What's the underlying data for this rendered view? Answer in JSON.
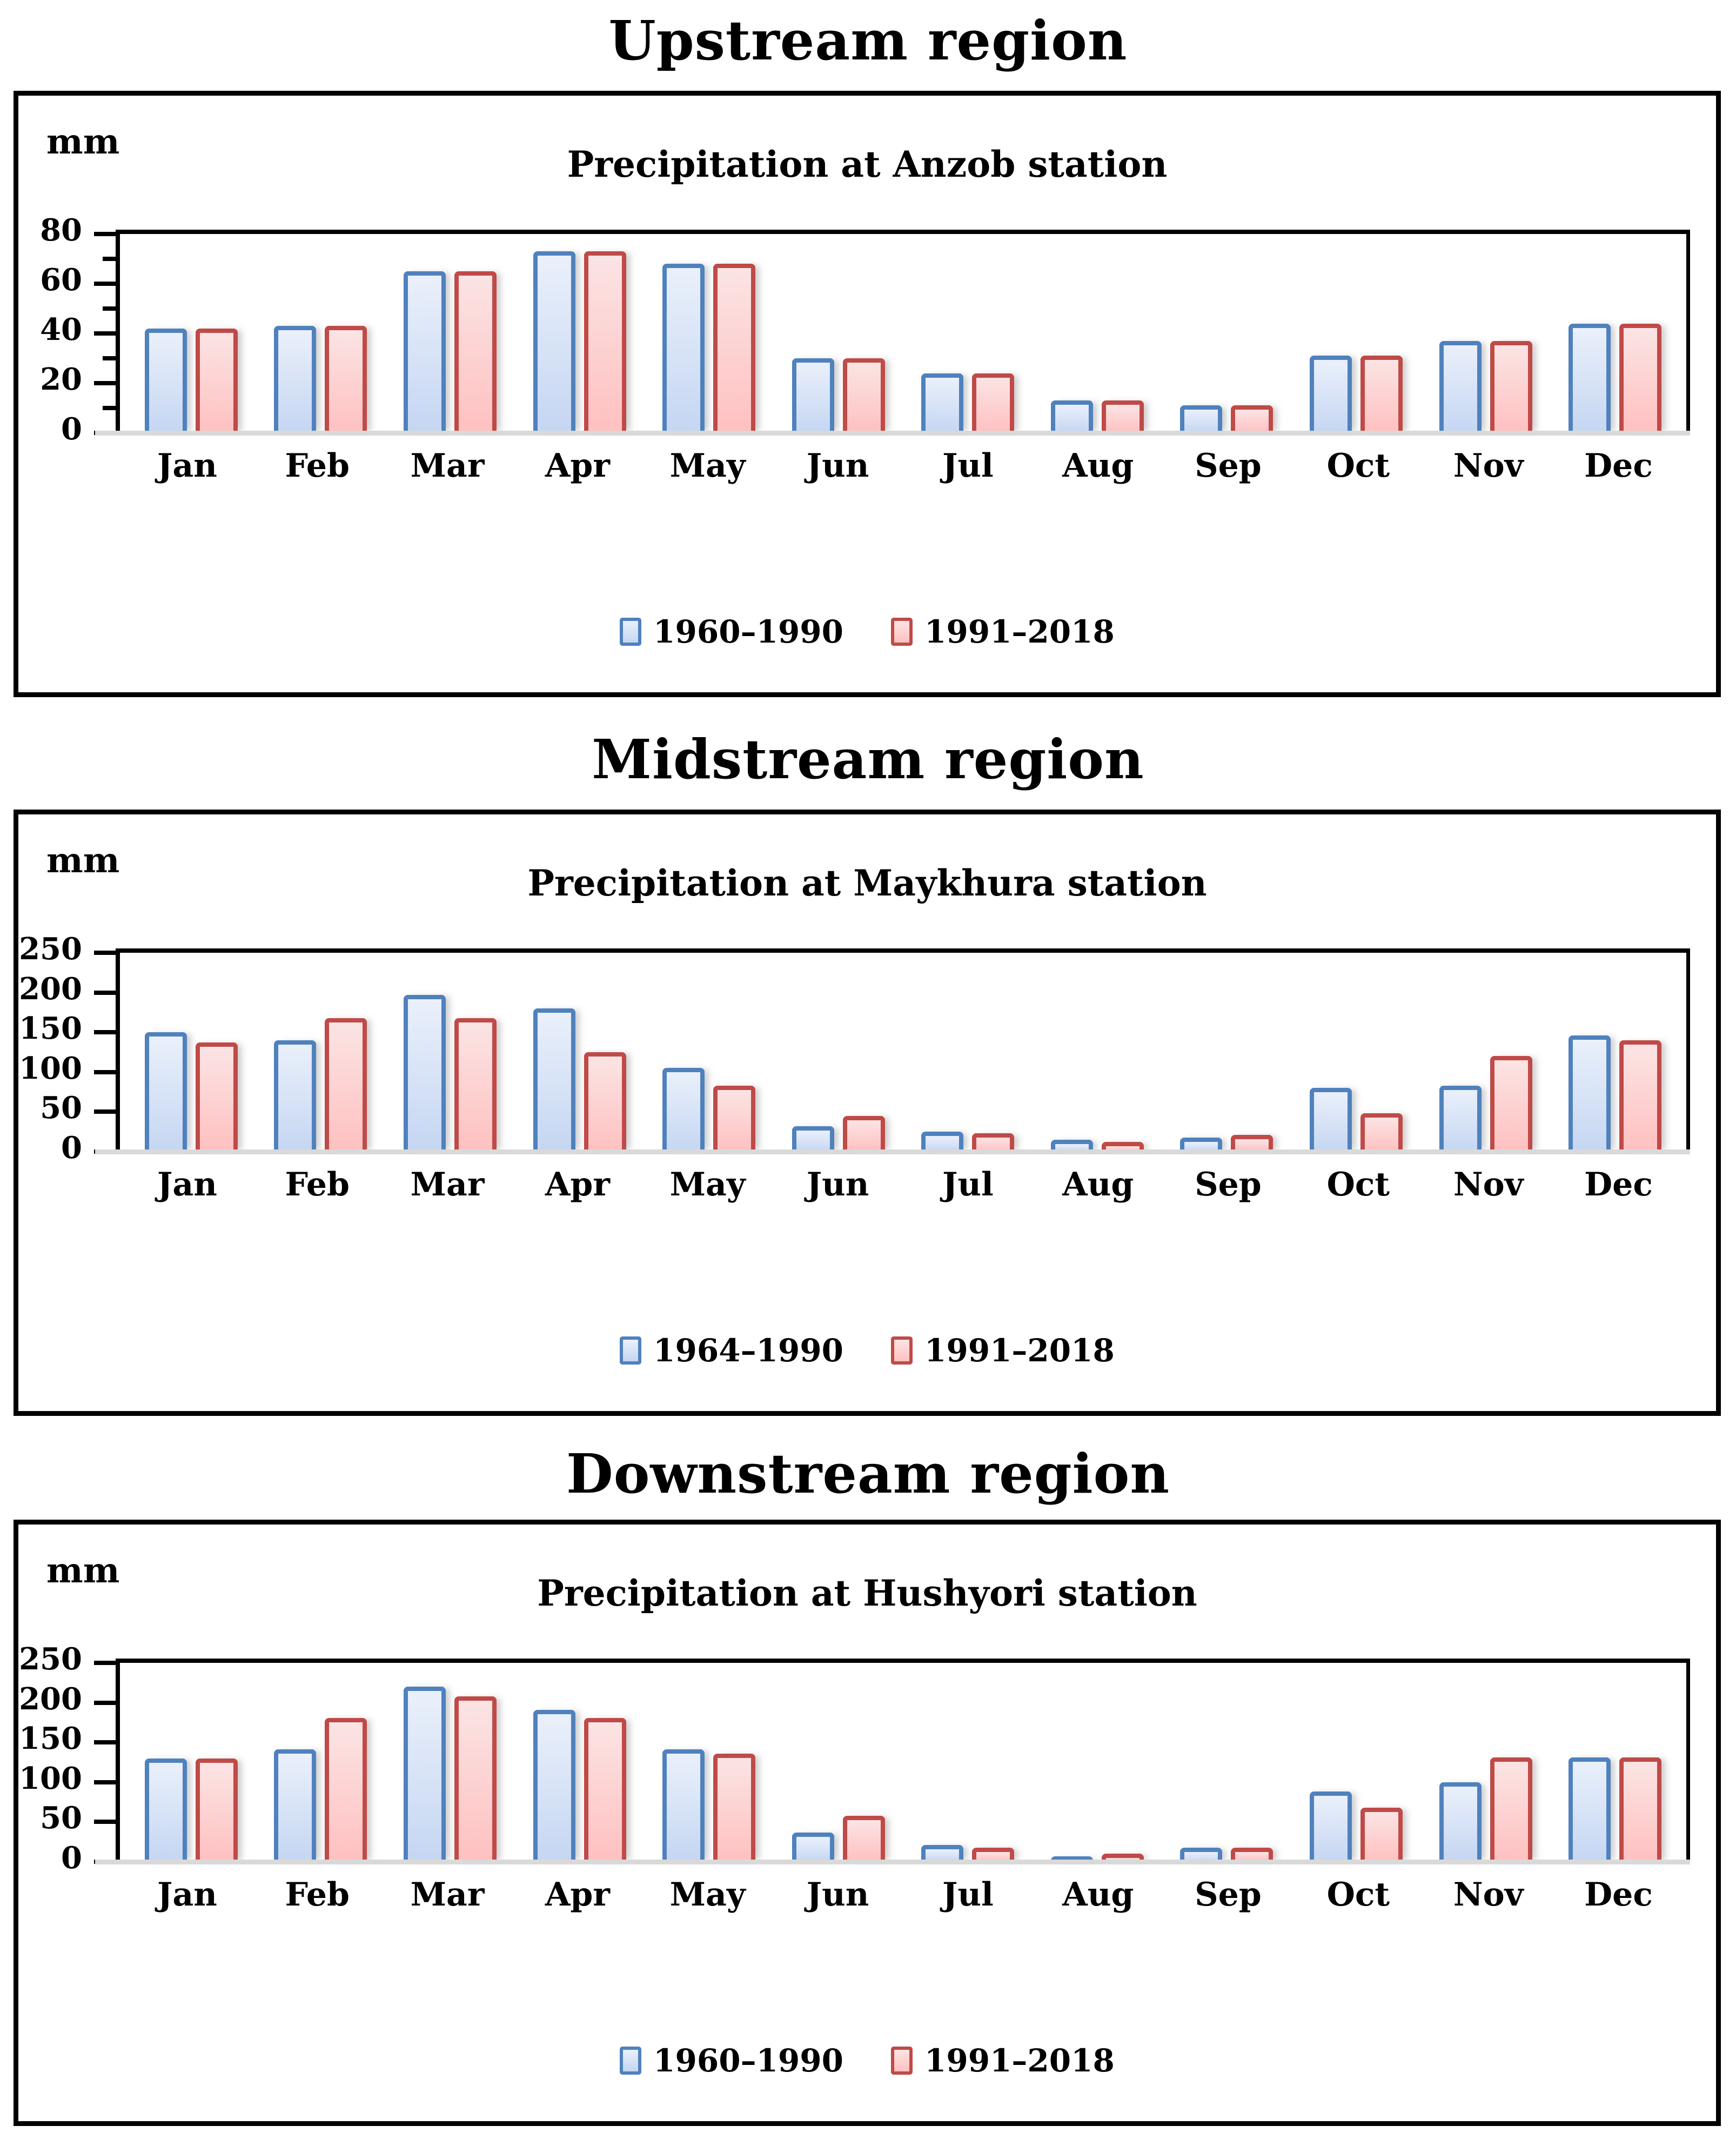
{
  "page_background": "#ffffff",
  "colors": {
    "series1_border": "#4f81bd",
    "series1_fill_top": "#eaf0fb",
    "series1_fill_bottom": "#c5d6f2",
    "series2_border": "#bf4a47",
    "series2_fill_top": "#fbe4e4",
    "series2_fill_bottom": "#ffc0c0",
    "axis": "#000000",
    "baseline": "#d9d9d9",
    "text": "#000000"
  },
  "chart_data": [
    {
      "type": "bar",
      "region_title": "Upstream region",
      "title": "Precipitation at Anzob station",
      "unit_label": "mm",
      "categories": [
        "Jan",
        "Feb",
        "Mar",
        "Apr",
        "May",
        "Jun",
        "Jul",
        "Aug",
        "Sep",
        "Oct",
        "Nov",
        "Dec"
      ],
      "series": [
        {
          "name": "1960–1990",
          "values": [
            42,
            43,
            65,
            73,
            68,
            30,
            24,
            13,
            11,
            31,
            37,
            44
          ]
        },
        {
          "name": "1991–2018",
          "values": [
            42,
            43,
            65,
            73,
            68,
            30,
            24,
            13,
            11,
            31,
            37,
            44
          ]
        }
      ],
      "ylim": [
        0,
        80
      ],
      "yticks": [
        80,
        60,
        40,
        20,
        0
      ],
      "yticks_minor": [
        70,
        50,
        30,
        10
      ],
      "xlabel": "",
      "ylabel": "mm",
      "grid": false,
      "legend_position": "bottom"
    },
    {
      "type": "bar",
      "region_title": "Midstream region",
      "title": "Precipitation at Maykhura station",
      "unit_label": "mm",
      "categories": [
        "Jan",
        "Feb",
        "Mar",
        "Apr",
        "May",
        "Jun",
        "Jul",
        "Aug",
        "Sep",
        "Oct",
        "Nov",
        "Dec"
      ],
      "series": [
        {
          "name": "1964–1990",
          "values": [
            150,
            140,
            197,
            180,
            105,
            32,
            25,
            15,
            18,
            80,
            83,
            146
          ]
        },
        {
          "name": "1991–2018",
          "values": [
            137,
            168,
            168,
            125,
            83,
            45,
            23,
            12,
            21,
            48,
            120,
            140
          ]
        }
      ],
      "ylim": [
        0,
        250
      ],
      "yticks": [
        250,
        200,
        150,
        100,
        50,
        0
      ],
      "yticks_minor": [],
      "xlabel": "",
      "ylabel": "mm",
      "grid": false,
      "legend_position": "bottom"
    },
    {
      "type": "bar",
      "region_title": "Downstream region",
      "title": "Precipitation at Hushyori station",
      "unit_label": "mm",
      "categories": [
        "Jan",
        "Feb",
        "Mar",
        "Apr",
        "May",
        "Jun",
        "Jul",
        "Aug",
        "Sep",
        "Oct",
        "Nov",
        "Dec"
      ],
      "series": [
        {
          "name": "1960–1990",
          "values": [
            130,
            141,
            220,
            191,
            141,
            37,
            21,
            7,
            18,
            88,
            100,
            131
          ]
        },
        {
          "name": "1991–2018",
          "values": [
            130,
            181,
            208,
            181,
            136,
            58,
            18,
            10,
            18,
            68,
            131,
            131
          ]
        }
      ],
      "ylim": [
        0,
        250
      ],
      "yticks": [
        250,
        200,
        150,
        100,
        50,
        0
      ],
      "yticks_minor": [],
      "xlabel": "",
      "ylabel": "mm",
      "grid": false,
      "legend_position": "bottom"
    }
  ]
}
